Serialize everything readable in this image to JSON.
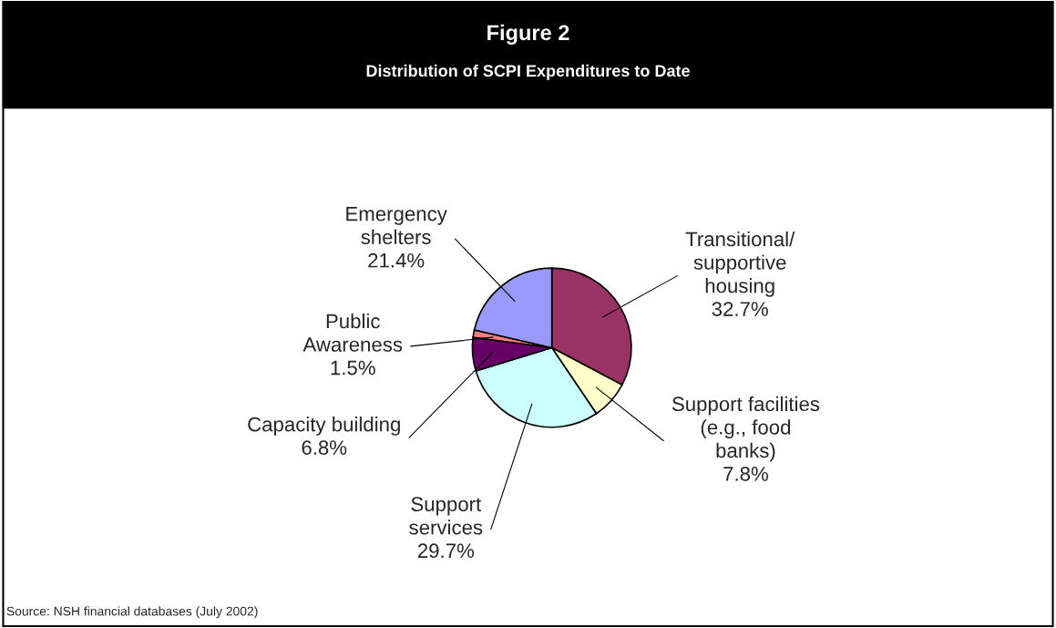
{
  "chart_data": {
    "type": "pie",
    "title": "Figure 2",
    "subtitle": "Distribution of SCPI Expenditures to Date",
    "categories": [
      "Transitional/\nsupportive\nhousing",
      "Support facilities\n(e.g., food\nbanks)",
      "Support\nservices",
      "Capacity building",
      "Public\nAwareness",
      "Emergency\nshelters"
    ],
    "values": [
      32.7,
      7.8,
      29.7,
      6.8,
      1.5,
      21.4
    ],
    "value_labels": [
      "32.7%",
      "7.8%",
      "29.7%",
      "6.8%",
      "1.5%",
      "21.4%"
    ],
    "colors": [
      "#993366",
      "#ffffcc",
      "#ccffff",
      "#660066",
      "#ff8080",
      "#9999ff"
    ],
    "annotations": [
      "Source: NSH financial databases (July 2002)"
    ]
  }
}
